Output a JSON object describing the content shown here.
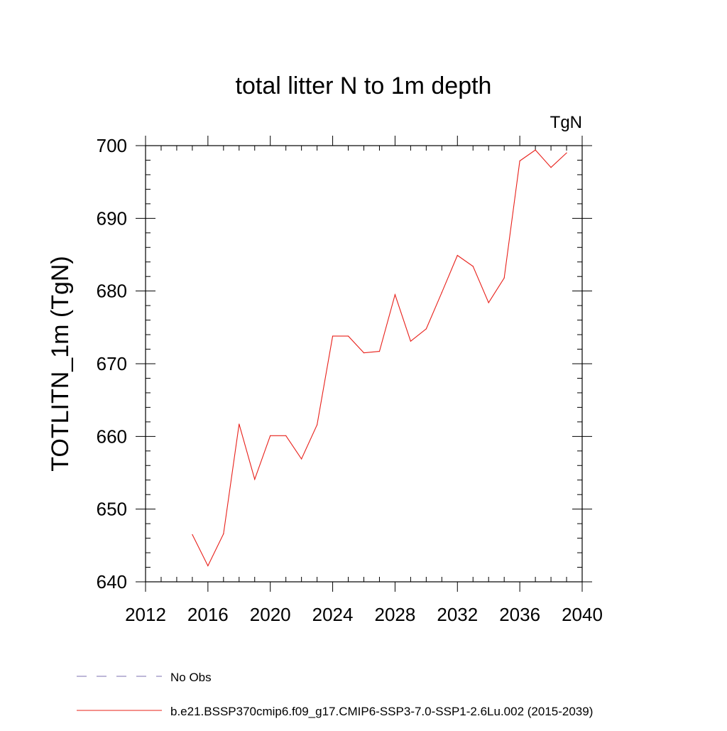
{
  "chart_data": {
    "type": "line",
    "title": "total litter N to 1m depth",
    "units_label": "TgN",
    "ylabel": "TOTLITN_1m  (TgN)",
    "xlabel": "",
    "xlim": [
      2012,
      2040
    ],
    "ylim": [
      640,
      700
    ],
    "x_ticks": [
      2012,
      2016,
      2020,
      2024,
      2028,
      2032,
      2036,
      2040
    ],
    "y_ticks": [
      640,
      650,
      660,
      670,
      680,
      690,
      700
    ],
    "grid": false,
    "legend_placement": "bottom",
    "legend": [
      {
        "label": "No Obs",
        "color": "#7b6fb0",
        "dashed": true
      },
      {
        "label": "b.e21.BSSP370cmip6.f09_g17.CMIP6-SSP3-7.0-SSP1-2.6Lu.002 (2015-2039)",
        "color": "#e8201a",
        "dashed": false
      }
    ],
    "series": [
      {
        "name": "b.e21.BSSP370cmip6.f09_g17.CMIP6-SSP3-7.0-SSP1-2.6Lu.002 (2015-2039)",
        "color": "#e8201a",
        "x": [
          2015,
          2016,
          2017,
          2018,
          2019,
          2020,
          2021,
          2022,
          2023,
          2024,
          2025,
          2026,
          2027,
          2028,
          2029,
          2030,
          2031,
          2032,
          2033,
          2034,
          2035,
          2036,
          2037,
          2038,
          2039
        ],
        "y": [
          646.5,
          642.2,
          646.6,
          661.7,
          654.1,
          660.1,
          660.1,
          656.9,
          661.6,
          673.8,
          673.8,
          671.5,
          671.7,
          679.5,
          673.1,
          674.8,
          679.8,
          684.9,
          683.4,
          678.4,
          681.8,
          697.9,
          699.4,
          697.0,
          699.0
        ]
      }
    ]
  }
}
